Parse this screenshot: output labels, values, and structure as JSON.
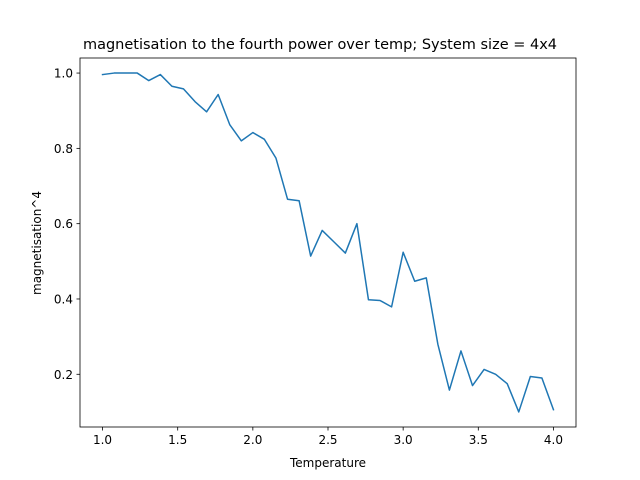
{
  "chart_data": {
    "type": "line",
    "title": "magnetisation to the fourth power over temp; System size = 4x4",
    "xlabel": "Temperature",
    "ylabel": "magnetisation^4",
    "xlim": [
      0.85,
      4.15
    ],
    "ylim": [
      0.06,
      1.04
    ],
    "xticks": [
      1.0,
      1.5,
      2.0,
      2.5,
      3.0,
      3.5,
      4.0
    ],
    "xtick_labels": [
      "1.0",
      "1.5",
      "2.0",
      "2.5",
      "3.0",
      "3.5",
      "4.0"
    ],
    "yticks": [
      0.2,
      0.4,
      0.6,
      0.8,
      1.0
    ],
    "ytick_labels": [
      "0.2",
      "0.4",
      "0.6",
      "0.8",
      "1.0"
    ],
    "grid": false,
    "series": [
      {
        "color": "#1f77b4",
        "x": [
          1.0,
          1.0769,
          1.1538,
          1.2308,
          1.3077,
          1.3846,
          1.4615,
          1.5385,
          1.6154,
          1.6923,
          1.7692,
          1.8462,
          1.9231,
          2.0,
          2.0769,
          2.1538,
          2.2308,
          2.3077,
          2.3846,
          2.4615,
          2.5385,
          2.6154,
          2.6923,
          2.7692,
          2.8462,
          2.9231,
          3.0,
          3.0769,
          3.1538,
          3.2308,
          3.3077,
          3.3846,
          3.4615,
          3.5385,
          3.6154,
          3.6923,
          3.7692,
          3.8462,
          3.9231,
          4.0
        ],
        "y": [
          0.996,
          1.0,
          1.0,
          1.0,
          0.98,
          0.996,
          0.965,
          0.958,
          0.924,
          0.897,
          0.943,
          0.863,
          0.82,
          0.842,
          0.824,
          0.774,
          0.665,
          0.661,
          0.514,
          0.582,
          0.552,
          0.522,
          0.6,
          0.398,
          0.396,
          0.379,
          0.524,
          0.447,
          0.456,
          0.28,
          0.158,
          0.262,
          0.17,
          0.213,
          0.2,
          0.175,
          0.1,
          0.194,
          0.19,
          0.106
        ]
      }
    ]
  }
}
